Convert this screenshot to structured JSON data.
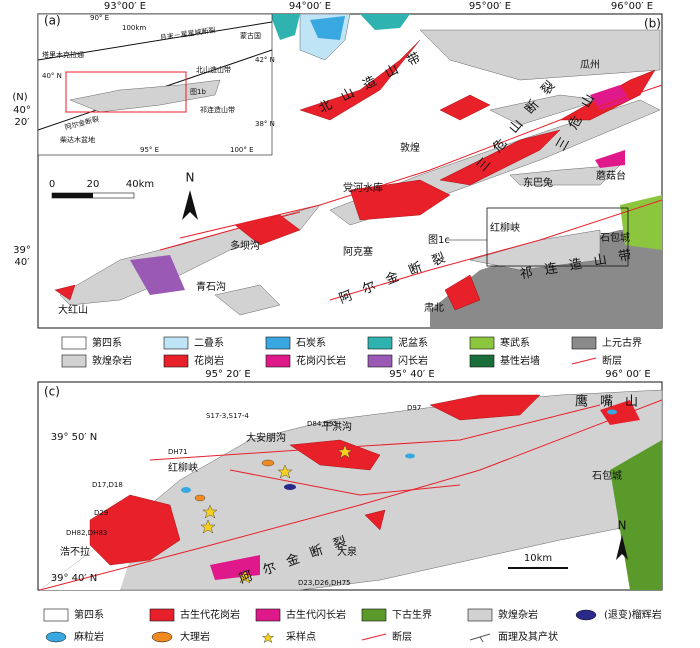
{
  "panel_b": {
    "label": "(b)",
    "lon_labels": [
      "93°00′ E",
      "94°00′ E",
      "95°00′ E",
      "96°00′ E"
    ],
    "lat_labels": [
      "(N)",
      "40°",
      "20′",
      "39°",
      "40′"
    ],
    "places": [
      "瓜州",
      "敦煌",
      "党河水库",
      "东巴兔",
      "蘑菇台",
      "多坝沟",
      "阿克塞",
      "红柳峡",
      "石包城",
      "青石沟",
      "大红山",
      "肃北"
    ],
    "belts": [
      "北山造山带",
      "三危山断裂",
      "三危山",
      "阿尔金断裂",
      "祁连造山带"
    ],
    "figure_ref": "图1c",
    "scale": [
      "0",
      "20",
      "40km"
    ],
    "north": "N"
  },
  "inset_a": {
    "label": "(a)",
    "texts": [
      "且末－星星峡断裂",
      "塔里木克拉通",
      "蒙古国",
      "北山造山带",
      "图1b",
      "阿尔金断裂",
      "祁连造山带",
      "柴达木盆地",
      "100km",
      "90° E",
      "42° N",
      "40° N",
      "38° N",
      "95° E",
      "100° E"
    ]
  },
  "legend_b": [
    {
      "label": "第四系",
      "color": "#ffffff"
    },
    {
      "label": "二叠系",
      "color": "#bfe4f6"
    },
    {
      "label": "石炭系",
      "color": "#3aa8e0"
    },
    {
      "label": "泥盆系",
      "color": "#2fb3b0"
    },
    {
      "label": "寒武系",
      "color": "#8cc63f"
    },
    {
      "label": "上元古界",
      "color": "#8a8a8a"
    },
    {
      "label": "敦煌杂岩",
      "color": "#d2d2d2"
    },
    {
      "label": "花岗岩",
      "color": "#e8202a"
    },
    {
      "label": "花岗闪长岩",
      "color": "#e0198a"
    },
    {
      "label": "闪长岩",
      "color": "#9b59b6"
    },
    {
      "label": "基性岩墙",
      "color": "#1a6e3a"
    },
    {
      "label": "断层",
      "color": "#e8202a"
    }
  ],
  "panel_c": {
    "label": "(c)",
    "lon_labels": [
      "95° 20′ E",
      "95° 40′ E",
      "96° 00′ E"
    ],
    "lat_labels": [
      "39° 50′ N",
      "39° 40′ N"
    ],
    "samples": [
      "S17-3,S17-4",
      "D84,D91",
      "D97",
      "DH71",
      "D17,D18",
      "D29",
      "DH82,DH83",
      "D23,D26,DH75"
    ],
    "places": [
      "干洪沟",
      "大安朋沟",
      "红柳峡",
      "浩不拉",
      "大泉",
      "鹰嘴山",
      "石包城"
    ],
    "fault": "阿尔金断裂",
    "scale": "10km",
    "north": "N"
  },
  "legend_c": [
    {
      "label": "第四系",
      "color": "#ffffff"
    },
    {
      "label": "古生代花岗岩",
      "color": "#e8202a"
    },
    {
      "label": "古生代闪长岩",
      "color": "#e0198a"
    },
    {
      "label": "下古生界",
      "color": "#5a9a2a"
    },
    {
      "label": "敦煌杂岩",
      "color": "#d2d2d2"
    },
    {
      "label": "(退变)榴辉岩",
      "color": "#2a2a8a"
    },
    {
      "label": "麻粒岩",
      "color": "#3aa8e0"
    },
    {
      "label": "大理岩",
      "color": "#f08a20"
    },
    {
      "label": "采样点",
      "color": "#f5d020"
    },
    {
      "label": "断层",
      "color": "#e8202a"
    },
    {
      "label": "面理及其产状",
      "color": "#555555"
    }
  ]
}
